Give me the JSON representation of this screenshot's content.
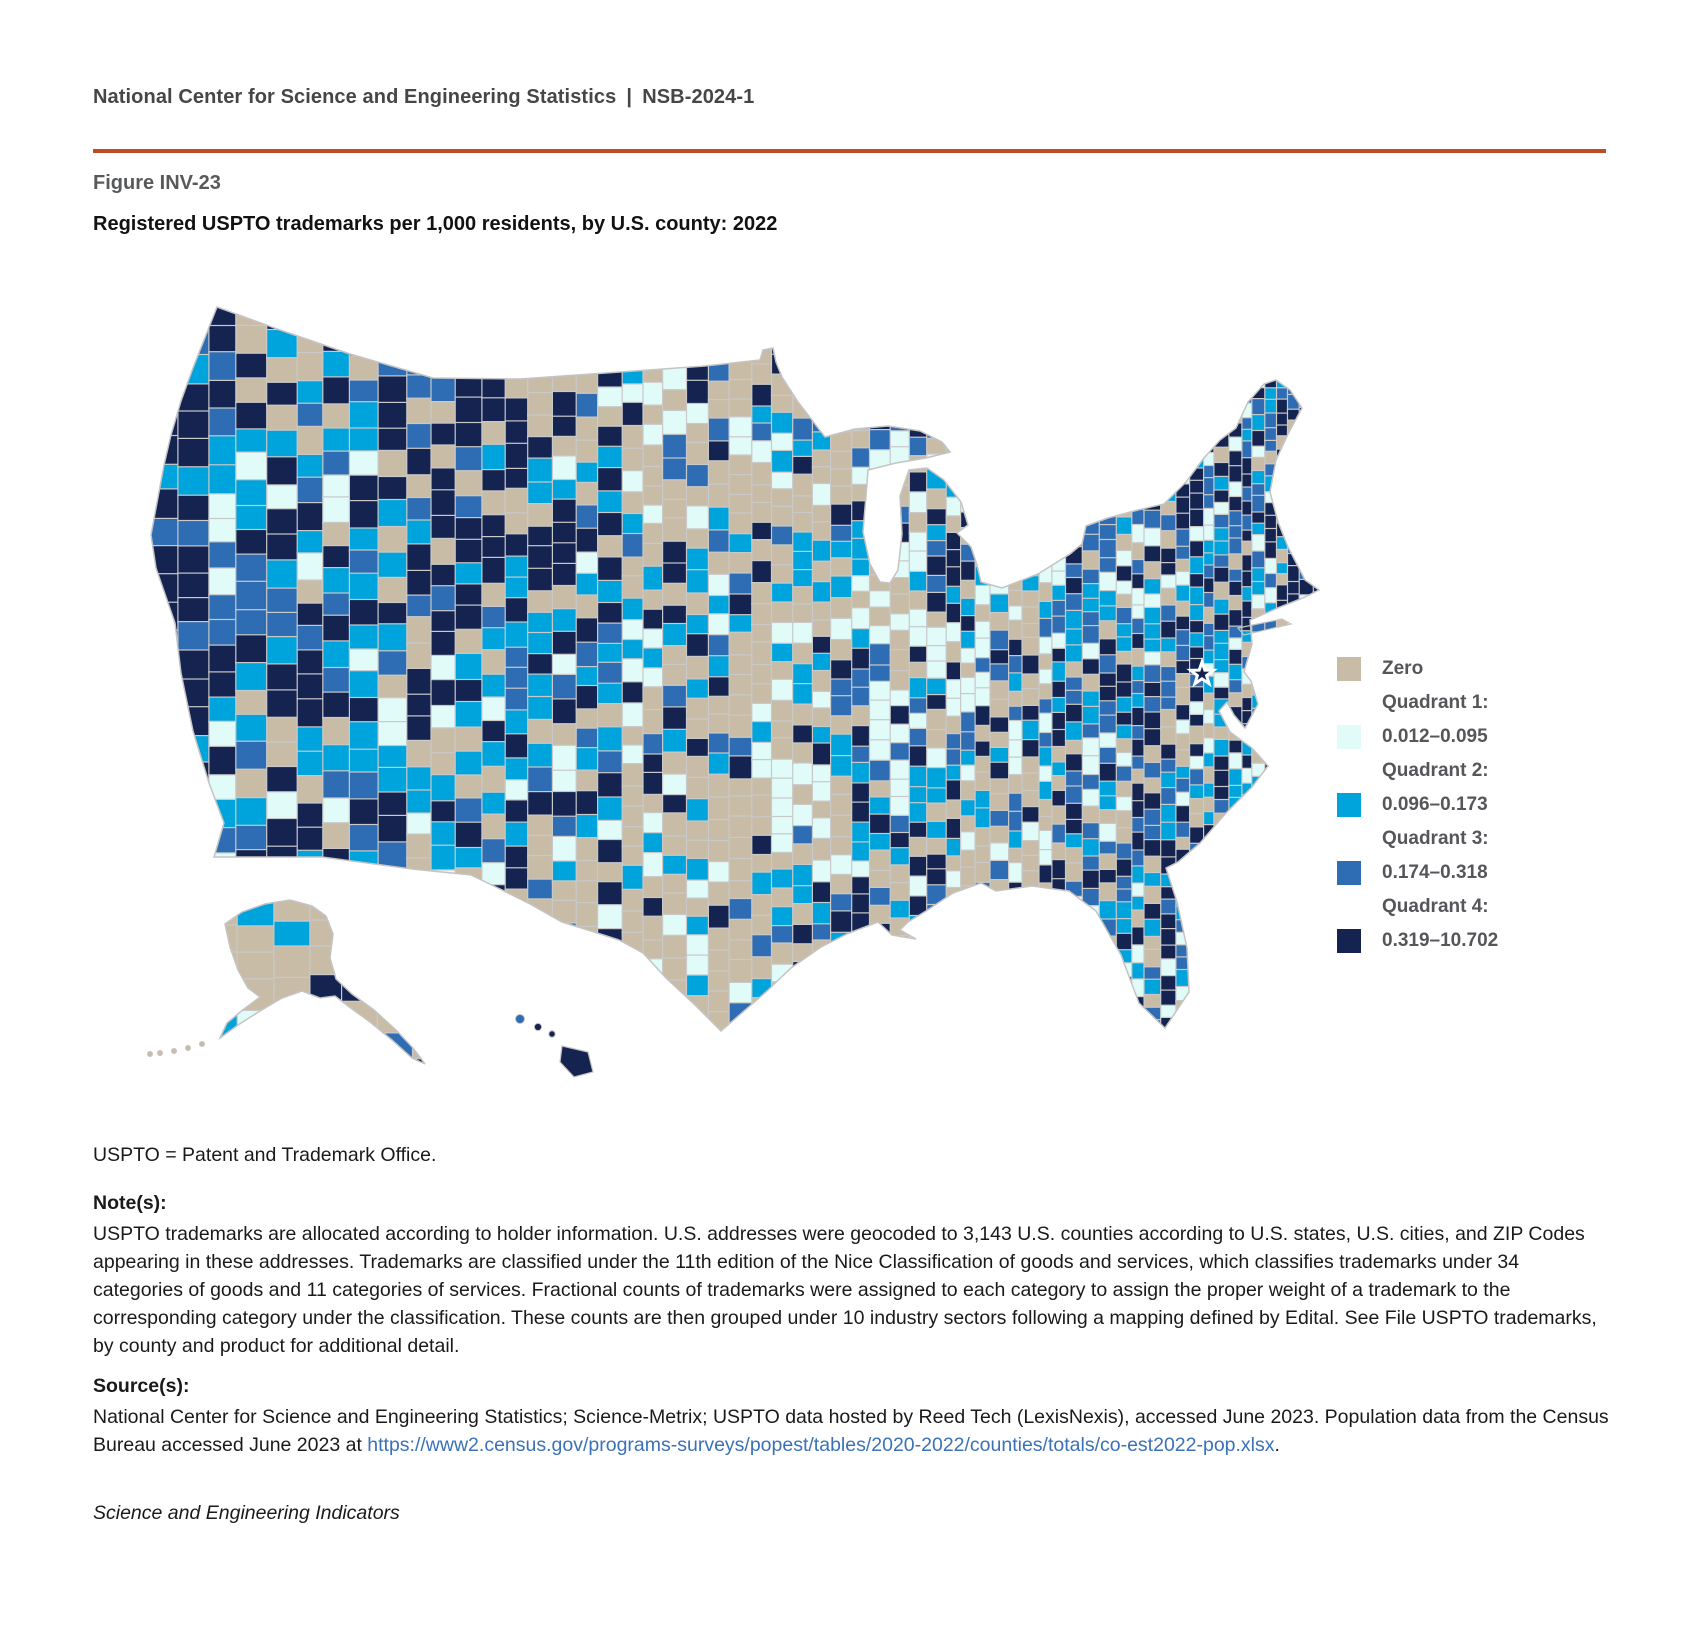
{
  "header": {
    "text": "National Center for Science and Engineering Statistics | NSB-2024-1"
  },
  "figure": {
    "label": "Figure INV-23",
    "title": "Registered USPTO trademarks per 1,000 residents, by U.S. county: 2022"
  },
  "map": {
    "legend": [
      {
        "label": "Zero",
        "color": "#C9BCA6"
      },
      {
        "header": "Quadrant 1:",
        "label": "0.012–0.095",
        "color": "#E1FBF9"
      },
      {
        "header": "Quadrant 2:",
        "label": "0.096–0.173",
        "color": "#00A4DC"
      },
      {
        "header": "Quadrant 3:",
        "label": "0.174–0.318",
        "color": "#2E6DB4"
      },
      {
        "header": "Quadrant 4:",
        "label": "0.319–10.702",
        "color": "#152350"
      }
    ],
    "county_border_color": "#C9C9C9",
    "outline_color": "#C4C4C4"
  },
  "footnotes": {
    "abbreviation": "USPTO = Patent and Trademark Office.",
    "notes_heading": "Note(s):",
    "notes": "USPTO trademarks are allocated according to holder information. U.S. addresses were geocoded to 3,143 U.S. counties according to U.S. states, U.S. cities, and ZIP Codes appearing in these addresses. Trademarks are classified under the 11th edition of the Nice Classification of goods and services, which classifies trademarks under 34 categories of goods and 11 categories of services. Fractional counts of trademarks were assigned to each category to assign the proper weight of a trademark to the corresponding category under the classification. These counts are then grouped under 10 industry sectors following a mapping defined by Edital. See File USPTO trademarks, by county and product for additional detail.",
    "sources_heading": "Source(s):",
    "source_text": "National Center for Science and Engineering Statistics; Science-Metrix; USPTO data hosted by Reed Tech (LexisNexis), accessed June 2023. Population data from the Census Bureau accessed June 2023 at ",
    "source_link": "https://www2.census.gov/programs-surveys/popest/tables/2020-2022/counties/totals/co-est2022-pop.xlsx",
    "source_suffix": ".",
    "journal": "Science and Engineering Indicators"
  },
  "colors": {
    "accent_rule": "#BE4B28",
    "link": "#3A72B8",
    "heading_gray": "#58595B",
    "legend_text": "#55565A"
  }
}
